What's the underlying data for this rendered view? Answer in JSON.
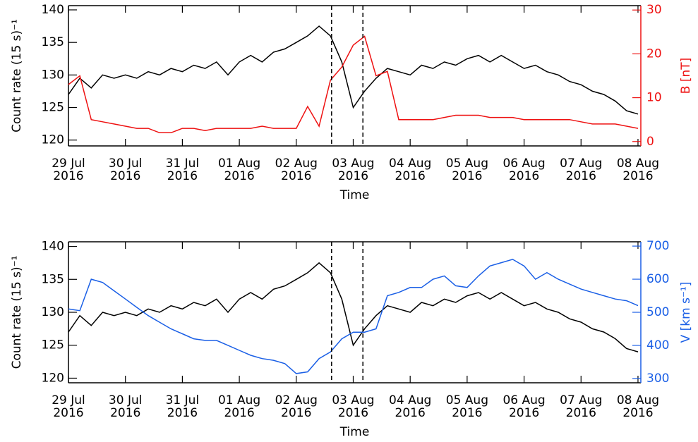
{
  "chart_data": [
    {
      "type": "line",
      "xlabel": "Time",
      "ylabel": "Count rate (15 s)⁻¹",
      "y2label": "B [nT]",
      "x": [
        0,
        0.2,
        0.4,
        0.6,
        0.8,
        1,
        1.2,
        1.4,
        1.6,
        1.8,
        2,
        2.2,
        2.4,
        2.6,
        2.8,
        3,
        3.2,
        3.4,
        3.6,
        3.8,
        4,
        4.2,
        4.4,
        4.6,
        4.8,
        5,
        5.2,
        5.4,
        5.6,
        5.8,
        6,
        6.2,
        6.4,
        6.6,
        6.8,
        7,
        7.2,
        7.4,
        7.6,
        7.8,
        8,
        8.2,
        8.4,
        8.6,
        8.8,
        9,
        9.2,
        9.4,
        9.6,
        9.8,
        10
      ],
      "xlim": [
        0,
        10.05
      ],
      "xticks": [
        {
          "value": 0,
          "label": "29 Jul",
          "sublabel": "2016"
        },
        {
          "value": 1,
          "label": "30 Jul",
          "sublabel": "2016"
        },
        {
          "value": 2,
          "label": "31 Jul",
          "sublabel": "2016"
        },
        {
          "value": 3,
          "label": "01 Aug",
          "sublabel": "2016"
        },
        {
          "value": 4,
          "label": "02 Aug",
          "sublabel": "2016"
        },
        {
          "value": 5,
          "label": "03 Aug",
          "sublabel": "2016"
        },
        {
          "value": 6,
          "label": "04 Aug",
          "sublabel": "2016"
        },
        {
          "value": 7,
          "label": "05 Aug",
          "sublabel": "2016"
        },
        {
          "value": 8,
          "label": "06 Aug",
          "sublabel": "2016"
        },
        {
          "value": 9,
          "label": "07 Aug",
          "sublabel": "2016"
        },
        {
          "value": 10,
          "label": "08 Aug",
          "sublabel": "2016"
        }
      ],
      "ylim": [
        119.1,
        140.65
      ],
      "yticks": [
        120,
        125,
        130,
        135,
        140
      ],
      "y2lim": [
        -1,
        31
      ],
      "y2ticks": [
        0,
        10,
        20,
        30
      ],
      "markers": [
        4.62,
        5.17
      ],
      "series": [
        {
          "color": "#000000",
          "values": [
            127,
            129.5,
            128,
            130,
            129.5,
            130,
            129.5,
            130.5,
            130,
            131,
            130.5,
            131.5,
            131,
            132,
            130,
            132,
            133,
            132,
            133.5,
            134,
            135,
            136,
            137.5,
            136,
            132,
            125,
            127.5,
            129.5,
            131,
            130.5,
            130,
            131.5,
            131,
            132,
            131.5,
            132.5,
            133,
            132,
            133,
            132,
            131,
            131.5,
            130.5,
            130,
            129,
            128.5,
            127.5,
            127,
            126,
            124.5,
            124
          ]
        },
        {
          "color": "#ee1111",
          "axis": "y2",
          "values": [
            13,
            15,
            5,
            4.5,
            4,
            3.5,
            3,
            3,
            2,
            2,
            3,
            3,
            2.5,
            3,
            3,
            3,
            3,
            3.5,
            3,
            3,
            3,
            8,
            3.5,
            14,
            17,
            22,
            24,
            15,
            16,
            5,
            5,
            5,
            5,
            5.5,
            6,
            6,
            6,
            5.5,
            5.5,
            5.5,
            5,
            5,
            5,
            5,
            5,
            4.5,
            4,
            4,
            4,
            3.5,
            3
          ]
        }
      ]
    },
    {
      "type": "line",
      "xlabel": "Time",
      "ylabel": "Count rate (15 s)⁻¹",
      "y2label": "V [km s⁻¹]",
      "x": [
        0,
        0.2,
        0.4,
        0.6,
        0.8,
        1,
        1.2,
        1.4,
        1.6,
        1.8,
        2,
        2.2,
        2.4,
        2.6,
        2.8,
        3,
        3.2,
        3.4,
        3.6,
        3.8,
        4,
        4.2,
        4.4,
        4.6,
        4.8,
        5,
        5.2,
        5.4,
        5.6,
        5.8,
        6,
        6.2,
        6.4,
        6.6,
        6.8,
        7,
        7.2,
        7.4,
        7.6,
        7.8,
        8,
        8.2,
        8.4,
        8.6,
        8.8,
        9,
        9.2,
        9.4,
        9.6,
        9.8,
        10
      ],
      "xlim": [
        0,
        10.05
      ],
      "xticks": [
        {
          "value": 0,
          "label": "29 Jul",
          "sublabel": "2016"
        },
        {
          "value": 1,
          "label": "30 Jul",
          "sublabel": "2016"
        },
        {
          "value": 2,
          "label": "31 Jul",
          "sublabel": "2016"
        },
        {
          "value": 3,
          "label": "01 Aug",
          "sublabel": "2016"
        },
        {
          "value": 4,
          "label": "02 Aug",
          "sublabel": "2016"
        },
        {
          "value": 5,
          "label": "03 Aug",
          "sublabel": "2016"
        },
        {
          "value": 6,
          "label": "04 Aug",
          "sublabel": "2016"
        },
        {
          "value": 7,
          "label": "05 Aug",
          "sublabel": "2016"
        },
        {
          "value": 8,
          "label": "06 Aug",
          "sublabel": "2016"
        },
        {
          "value": 9,
          "label": "07 Aug",
          "sublabel": "2016"
        },
        {
          "value": 10,
          "label": "08 Aug",
          "sublabel": "2016"
        }
      ],
      "ylim": [
        119.3,
        140.7
      ],
      "yticks": [
        120,
        125,
        130,
        135,
        140
      ],
      "y2lim": [
        287,
        713
      ],
      "y2ticks": [
        300,
        400,
        500,
        600,
        700
      ],
      "markers": [
        4.62,
        5.17
      ],
      "series": [
        {
          "color": "#000000",
          "values": [
            127,
            129.5,
            128,
            130,
            129.5,
            130,
            129.5,
            130.5,
            130,
            131,
            130.5,
            131.5,
            131,
            132,
            130,
            132,
            133,
            132,
            133.5,
            134,
            135,
            136,
            137.5,
            136,
            132,
            125,
            127.5,
            129.5,
            131,
            130.5,
            130,
            131.5,
            131,
            132,
            131.5,
            132.5,
            133,
            132,
            133,
            132,
            131,
            131.5,
            130.5,
            130,
            129,
            128.5,
            127.5,
            127,
            126,
            124.5,
            124
          ]
        },
        {
          "color": "#1a5fe6",
          "axis": "y2",
          "values": [
            510,
            505,
            600,
            590,
            565,
            540,
            515,
            490,
            470,
            450,
            435,
            420,
            415,
            415,
            400,
            385,
            370,
            360,
            355,
            345,
            315,
            320,
            360,
            380,
            420,
            440,
            440,
            450,
            550,
            560,
            575,
            575,
            600,
            610,
            580,
            575,
            610,
            640,
            650,
            660,
            640,
            600,
            620,
            600,
            585,
            570,
            560,
            550,
            540,
            535,
            520
          ]
        }
      ]
    }
  ]
}
